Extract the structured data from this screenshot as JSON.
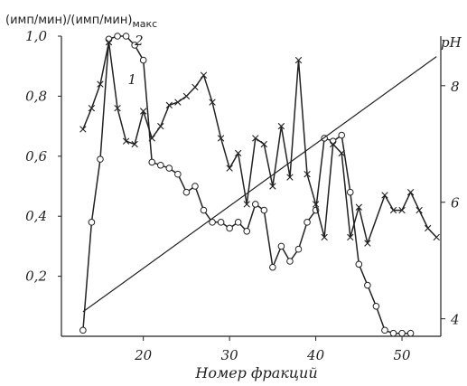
{
  "chart_data": {
    "type": "line",
    "ylabel_left": "(имп/мин)/(имп/мин)",
    "ylabel_left_sub": "макс",
    "ylabel_right": "pH",
    "xlabel": "Номер фракций",
    "xlim": [
      10.5,
      54.5
    ],
    "ylim_left": [
      0,
      1.0
    ],
    "ylim_right": [
      3.7,
      8.85
    ],
    "x_ticks": [
      20,
      30,
      40,
      50
    ],
    "y_ticks_left": [
      0.2,
      0.4,
      0.6,
      0.8,
      1.0
    ],
    "y_tick_labels_left": [
      "0,2",
      "0,4",
      "0,6",
      "0,8",
      "1,0"
    ],
    "y_ticks_right": [
      4,
      6,
      8
    ],
    "y_tick_labels_right": [
      "4",
      "6",
      "8"
    ],
    "series": [
      {
        "name": "1",
        "marker": "circle",
        "x": [
          13,
          14,
          15,
          16,
          17,
          18,
          19,
          20,
          21,
          22,
          23,
          24,
          25,
          26,
          27,
          28,
          29,
          30,
          31,
          32,
          33,
          34,
          35,
          36,
          37,
          38,
          39,
          40,
          41,
          42,
          43,
          44,
          45,
          46,
          47,
          48,
          49,
          50,
          51
        ],
        "y": [
          0.02,
          0.38,
          0.59,
          0.99,
          1.0,
          1.0,
          0.97,
          0.92,
          0.58,
          0.57,
          0.56,
          0.54,
          0.48,
          0.5,
          0.42,
          0.38,
          0.38,
          0.36,
          0.38,
          0.35,
          0.44,
          0.42,
          0.23,
          0.3,
          0.25,
          0.29,
          0.38,
          0.42,
          0.66,
          0.65,
          0.67,
          0.48,
          0.24,
          0.17,
          0.1,
          0.02,
          0.01,
          0.01,
          0.01
        ]
      },
      {
        "name": "2",
        "marker": "x",
        "x": [
          13,
          14,
          15,
          16,
          17,
          18,
          19,
          20,
          21,
          22,
          23,
          24,
          25,
          26,
          27,
          28,
          29,
          30,
          31,
          32,
          33,
          34,
          35,
          36,
          37,
          38,
          39,
          40,
          41,
          42,
          43,
          44,
          45,
          46,
          48,
          49,
          50,
          51,
          52,
          53,
          54
        ],
        "y": [
          0.69,
          0.76,
          0.84,
          0.98,
          0.76,
          0.65,
          0.64,
          0.75,
          0.66,
          0.7,
          0.77,
          0.78,
          0.8,
          0.83,
          0.87,
          0.78,
          0.66,
          0.56,
          0.61,
          0.44,
          0.66,
          0.64,
          0.5,
          0.7,
          0.53,
          0.92,
          0.54,
          0.44,
          0.33,
          0.64,
          0.61,
          0.33,
          0.43,
          0.31,
          0.47,
          0.42,
          0.42,
          0.48,
          0.42,
          0.36,
          0.33
        ]
      },
      {
        "name": "pH",
        "marker": "none",
        "axis": "right",
        "x": [
          13,
          54
        ],
        "y": [
          4.12,
          8.5
        ]
      }
    ],
    "annotations": [
      {
        "text": "1",
        "x": 18.2,
        "y": 0.84
      },
      {
        "text": "2",
        "x": 19.0,
        "y": 0.97
      }
    ],
    "grid": false,
    "legend": "none"
  }
}
